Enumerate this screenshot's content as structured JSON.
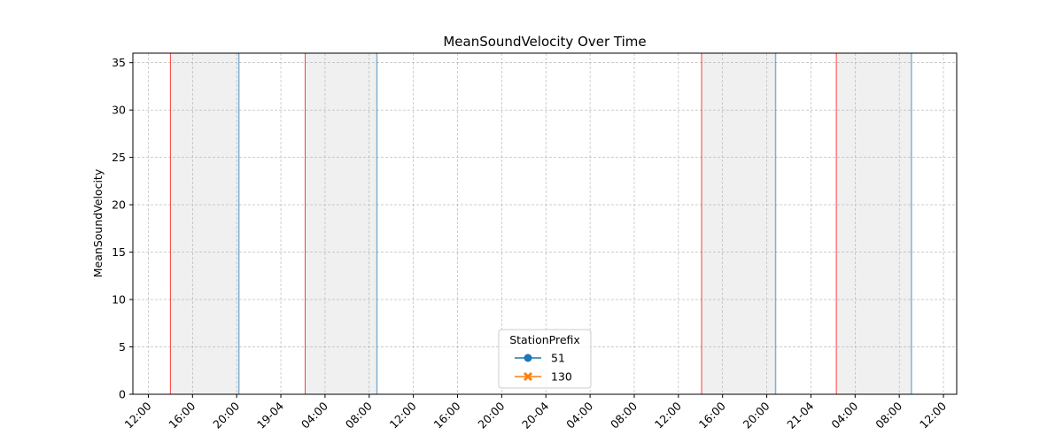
{
  "chart_data": {
    "type": "line",
    "title": "MeanSoundVelocity Over Time",
    "xlabel": "",
    "ylabel": "MeanSoundVelocity",
    "ylim": [
      0,
      36
    ],
    "yticks": [
      0,
      5,
      10,
      15,
      20,
      25,
      30,
      35
    ],
    "xlim_hours": [
      -1.4,
      73.2
    ],
    "xticks": [
      {
        "hour": 0,
        "label": "12:00"
      },
      {
        "hour": 4,
        "label": "16:00"
      },
      {
        "hour": 8,
        "label": "20:00"
      },
      {
        "hour": 12,
        "label": "19-04"
      },
      {
        "hour": 16,
        "label": "04:00"
      },
      {
        "hour": 20,
        "label": "08:00"
      },
      {
        "hour": 24,
        "label": "12:00"
      },
      {
        "hour": 28,
        "label": "16:00"
      },
      {
        "hour": 32,
        "label": "20:00"
      },
      {
        "hour": 36,
        "label": "20-04"
      },
      {
        "hour": 40,
        "label": "04:00"
      },
      {
        "hour": 44,
        "label": "08:00"
      },
      {
        "hour": 48,
        "label": "12:00"
      },
      {
        "hour": 52,
        "label": "16:00"
      },
      {
        "hour": 56,
        "label": "20:00"
      },
      {
        "hour": 60,
        "label": "21-04"
      },
      {
        "hour": 64,
        "label": "04:00"
      },
      {
        "hour": 68,
        "label": "08:00"
      },
      {
        "hour": 72,
        "label": "12:00"
      }
    ],
    "grid": true,
    "legend": {
      "title": "StationPrefix",
      "placement": "lower-center",
      "entries": [
        {
          "name": "51",
          "color": "#1f77b4",
          "marker": "circle"
        },
        {
          "name": "130",
          "color": "#ff7f0e",
          "marker": "x"
        }
      ]
    },
    "series": [
      {
        "name": "51",
        "color": "#1f77b4",
        "x": [],
        "y": []
      },
      {
        "name": "130",
        "color": "#ff7f0e",
        "x": [],
        "y": []
      }
    ],
    "shaded_spans_hours": [
      {
        "start": 2.0,
        "end": 8.2
      },
      {
        "start": 14.2,
        "end": 20.7
      },
      {
        "start": 50.1,
        "end": 56.8
      },
      {
        "start": 62.3,
        "end": 69.1
      }
    ],
    "span_start_color": "#ff0000",
    "span_end_color": "#1f77b4",
    "shade_color": "#f0f0f0"
  }
}
